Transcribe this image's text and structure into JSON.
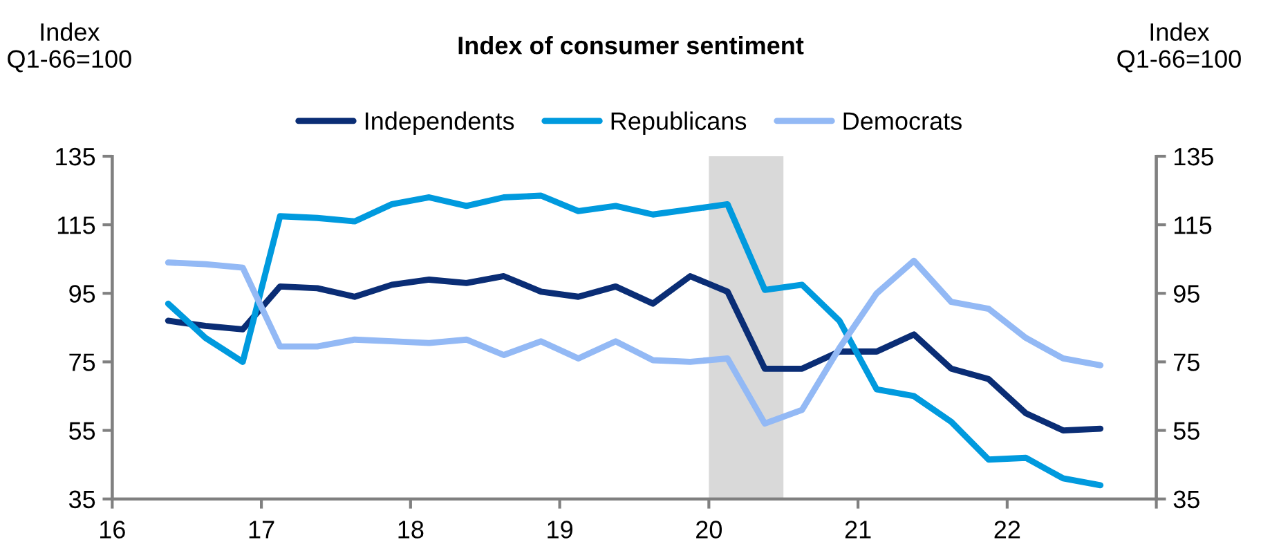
{
  "chart_data": {
    "type": "line",
    "title": "Index of consumer sentiment",
    "ylabel": "Index\nQ1-66=100",
    "y2label": "Index\nQ1-66=100",
    "x": [
      16.375,
      16.625,
      16.875,
      17.125,
      17.375,
      17.625,
      17.875,
      18.125,
      18.375,
      18.625,
      18.875,
      19.125,
      19.375,
      19.625,
      19.875,
      20.125,
      20.375,
      20.625,
      20.875,
      21.125,
      21.375,
      21.625,
      21.875,
      22.125,
      22.375,
      22.625
    ],
    "series": [
      {
        "name": "Independents",
        "color": "#0a2d75",
        "values": [
          87,
          85.5,
          84.5,
          97,
          96.5,
          94,
          97.5,
          99,
          98,
          100,
          95.5,
          94,
          97,
          92,
          100,
          95.5,
          73,
          73,
          78,
          78,
          83,
          73,
          70,
          60,
          55,
          55.5
        ]
      },
      {
        "name": "Republicans",
        "color": "#009ade",
        "values": [
          92,
          82,
          75,
          117.5,
          117,
          116,
          121,
          123,
          120.5,
          123,
          123.5,
          119,
          120.5,
          118,
          119.5,
          121,
          96,
          97.5,
          87,
          67,
          65,
          57.5,
          46.5,
          47,
          41,
          39
        ]
      },
      {
        "name": "Democrats",
        "color": "#93b9f5",
        "values": [
          104,
          103.5,
          102.5,
          79.5,
          79.5,
          81.5,
          81,
          80.5,
          81.5,
          77,
          81,
          76,
          81,
          75.5,
          75,
          76,
          57,
          61,
          79,
          95,
          104.5,
          92.5,
          90.5,
          82,
          76,
          74
        ]
      }
    ],
    "bands": [
      {
        "axis": "x",
        "from": 20,
        "to": 20.5,
        "color": "#d9d9d9"
      }
    ],
    "xlim": [
      16,
      23
    ],
    "xticks": [
      16,
      17,
      18,
      19,
      20,
      21,
      22,
      {
        "value": 23,
        "label": null
      }
    ],
    "ylim": [
      35,
      135
    ],
    "yticks": [
      35,
      55,
      75,
      95,
      115,
      135
    ],
    "y2lim": [
      35,
      135
    ],
    "y2ticks": [
      35,
      55,
      75,
      95,
      115,
      135
    ],
    "legend": "top",
    "grid": false,
    "line_style": "solid",
    "marker": "none"
  }
}
